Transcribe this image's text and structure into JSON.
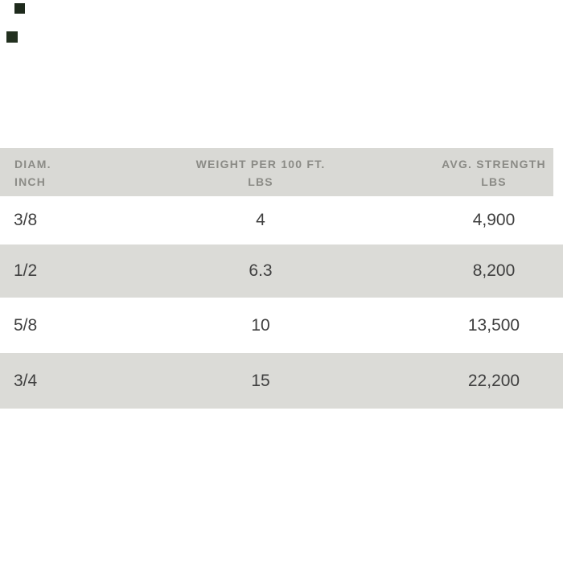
{
  "canvas": {
    "background": "#ffffff"
  },
  "color_swatches": [
    {
      "name": "dark-green-swatch-1",
      "color": "#1e2a1c"
    },
    {
      "name": "dark-green-swatch-2",
      "color": "#22301f"
    }
  ],
  "table": {
    "colors": {
      "header_bg": "#d9d9d5",
      "alt_row_bg": "#dbdbd7",
      "header_text": "#8b8b86",
      "body_text": "#3f3f3f"
    },
    "header": {
      "diam": {
        "line1": "DIAM.",
        "line2": "INCH"
      },
      "weight": {
        "line1": "WEIGHT PER 100 FT.",
        "line2": "LBS"
      },
      "strength": {
        "line1": "AVG. STRENGTH",
        "line2": "LBS"
      }
    },
    "rows": [
      {
        "diam": "3/8",
        "weight": "4",
        "strength": "4,900"
      },
      {
        "diam": "1/2",
        "weight": "6.3",
        "strength": "8,200"
      },
      {
        "diam": "5/8",
        "weight": "10",
        "strength": "13,500"
      },
      {
        "diam": "3/4",
        "weight": "15",
        "strength": "22,200"
      }
    ]
  }
}
